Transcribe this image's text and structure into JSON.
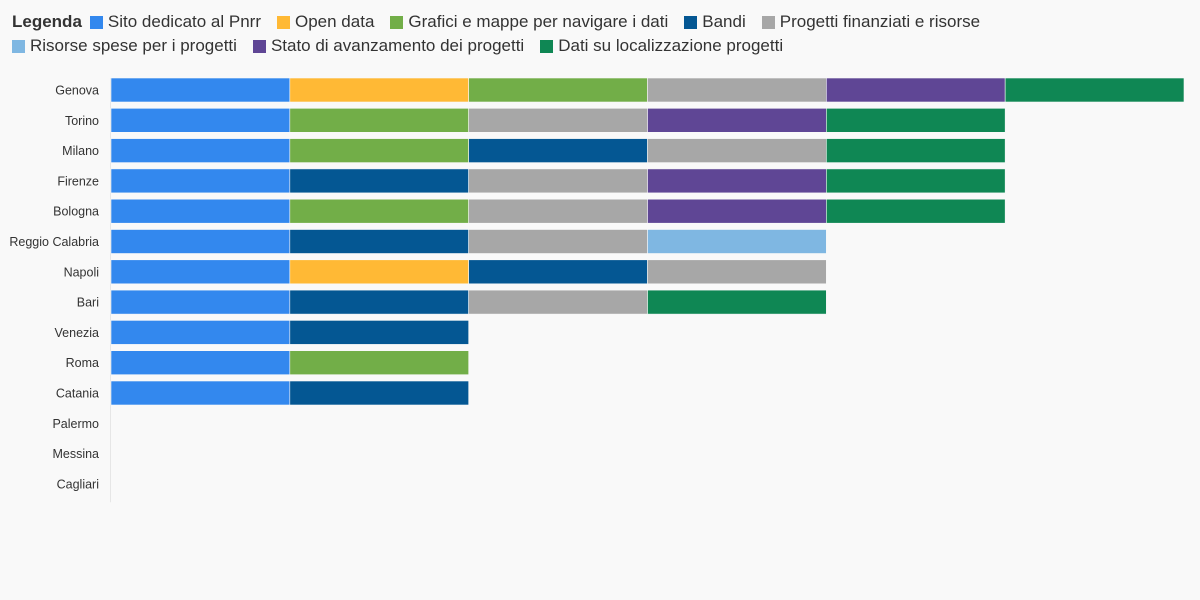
{
  "legend_title": "Legenda",
  "chart_data": {
    "type": "bar",
    "orientation": "horizontal",
    "stacked": true,
    "grid": false,
    "legend_placement": "top",
    "categories": [
      "Genova",
      "Torino",
      "Milano",
      "Firenze",
      "Bologna",
      "Reggio Calabria",
      "Napoli",
      "Bari",
      "Venezia",
      "Roma",
      "Catania",
      "Palermo",
      "Messina",
      "Cagliari"
    ],
    "series": [
      {
        "name": "Sito dedicato al Pnrr",
        "color": "#3388ee",
        "values": [
          1,
          1,
          1,
          1,
          1,
          1,
          1,
          1,
          1,
          1,
          1,
          0,
          0,
          0
        ]
      },
      {
        "name": "Open data",
        "color": "#ffb935",
        "values": [
          1,
          0,
          0,
          0,
          0,
          0,
          1,
          0,
          0,
          0,
          0,
          0,
          0,
          0
        ]
      },
      {
        "name": "Grafici e mappe per navigare i dati",
        "color": "#72ae48",
        "values": [
          1,
          1,
          1,
          0,
          1,
          0,
          0,
          0,
          0,
          1,
          0,
          0,
          0,
          0
        ]
      },
      {
        "name": "Bandi",
        "color": "#045793",
        "values": [
          0,
          0,
          1,
          1,
          0,
          1,
          1,
          1,
          1,
          0,
          1,
          0,
          0,
          0
        ]
      },
      {
        "name": "Progetti finanziati e risorse",
        "color": "#a7a7a7",
        "values": [
          1,
          1,
          1,
          1,
          1,
          1,
          1,
          1,
          0,
          0,
          0,
          0,
          0,
          0
        ]
      },
      {
        "name": "Risorse spese per i progetti",
        "color": "#7fb7e2",
        "values": [
          0,
          0,
          0,
          0,
          0,
          1,
          0,
          0,
          0,
          0,
          0,
          0,
          0,
          0
        ]
      },
      {
        "name": "Stato di avanzamento dei progetti",
        "color": "#5f4695",
        "values": [
          1,
          1,
          0,
          1,
          1,
          0,
          0,
          0,
          0,
          0,
          0,
          0,
          0,
          0
        ]
      },
      {
        "name": "Dati su localizzazione progetti",
        "color": "#0f8754",
        "values": [
          1,
          1,
          1,
          1,
          1,
          0,
          0,
          1,
          0,
          0,
          0,
          0,
          0,
          0
        ]
      }
    ],
    "xlim": [
      0,
      6
    ],
    "title": "",
    "xlabel": "",
    "ylabel": ""
  }
}
